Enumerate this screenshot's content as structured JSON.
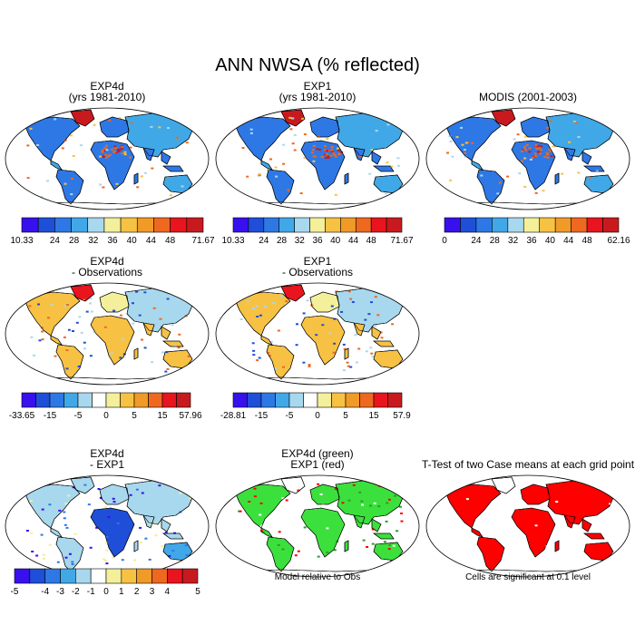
{
  "title": "ANN NWSA (% reflected)",
  "colors": {
    "cmap_a": [
      "#3810ee",
      "#1f4fd8",
      "#2e78e6",
      "#41a8e8",
      "#a8d8ee",
      "#f3ef9a",
      "#f7c243",
      "#f09a27",
      "#ee6820",
      "#e8141e",
      "#c81a1e"
    ],
    "cmap_d": [
      "#3810ee",
      "#1f4fd8",
      "#2e78e6",
      "#41a8e8",
      "#a8d8ee",
      "#ffffff",
      "#f3ef9a",
      "#f7c243",
      "#f09a27",
      "#ee6820",
      "#e8141e",
      "#c81a1e"
    ],
    "land_a": "#2d6be0",
    "land_b": "#f09a27",
    "land_c": "#e8141e",
    "ocean": "#ffffff",
    "green": "#3ce03c",
    "red_sig": "#ff0000"
  },
  "chart_data": [
    {
      "type": "map",
      "panel": "exp4d",
      "title": [
        "EXP4d",
        "(yrs 1981-2010)"
      ],
      "colorbar": {
        "ticks": [
          "10.33",
          "24",
          "28",
          "32",
          "36",
          "40",
          "44",
          "48",
          "71.67"
        ]
      }
    },
    {
      "type": "map",
      "panel": "exp1",
      "title": [
        "EXP1",
        "(yrs 1981-2010)"
      ],
      "colorbar": {
        "ticks": [
          "10.33",
          "24",
          "28",
          "32",
          "36",
          "40",
          "44",
          "48",
          "71.67"
        ]
      }
    },
    {
      "type": "map",
      "panel": "modis",
      "title": [
        "MODIS (2001-2003)"
      ],
      "colorbar": {
        "ticks": [
          "0",
          "24",
          "28",
          "32",
          "36",
          "40",
          "44",
          "48",
          "62.16"
        ]
      }
    },
    {
      "type": "map",
      "panel": "exp4d_obs",
      "title": [
        "EXP4d",
        "- Observations"
      ],
      "colorbar": {
        "ticks": [
          "-33.65",
          "-15",
          "-5",
          "0",
          "5",
          "15",
          "57.96"
        ]
      }
    },
    {
      "type": "map",
      "panel": "exp1_obs",
      "title": [
        "EXP1",
        "- Observations"
      ],
      "colorbar": {
        "ticks": [
          "-28.81",
          "-15",
          "-5",
          "0",
          "5",
          "15",
          "57.9"
        ]
      }
    },
    {
      "type": "map",
      "panel": "exp4d_exp1",
      "title": [
        "EXP4d",
        "- EXP1"
      ],
      "colorbar": {
        "ticks": [
          "-5",
          "-4",
          "-3",
          "-2",
          "-1",
          "0",
          "1",
          "2",
          "3",
          "4",
          "5"
        ]
      }
    },
    {
      "type": "map",
      "panel": "relative",
      "title": [
        "EXP4d (green)",
        "EXP1 (red)"
      ],
      "caption": "Model relative to Obs"
    },
    {
      "type": "map",
      "panel": "ttest",
      "title": [
        "T-Test of two Case means at each grid point"
      ],
      "caption": "Cells are significant at 0.1 level"
    }
  ]
}
